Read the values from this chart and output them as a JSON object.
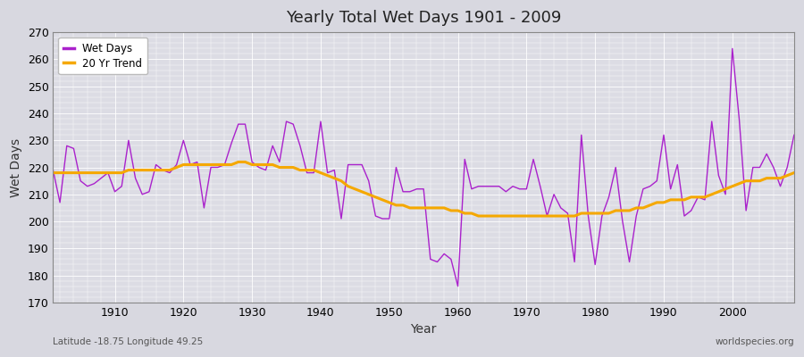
{
  "title": "Yearly Total Wet Days 1901 - 2009",
  "xlabel": "Year",
  "ylabel": "Wet Days",
  "xlim": [
    1901,
    2009
  ],
  "ylim": [
    170,
    270
  ],
  "yticks": [
    170,
    180,
    190,
    200,
    210,
    220,
    230,
    240,
    250,
    260,
    270
  ],
  "background_color": "#d8d8e0",
  "plot_bg_color": "#dcdce4",
  "line_color": "#aa22cc",
  "trend_color": "#f5a800",
  "grid_color": "#ffffff",
  "subtitle_left": "Latitude -18.75 Longitude 49.25",
  "subtitle_right": "worldspecies.org",
  "legend_items": [
    "Wet Days",
    "20 Yr Trend"
  ],
  "years": [
    1901,
    1902,
    1903,
    1904,
    1905,
    1906,
    1907,
    1908,
    1909,
    1910,
    1911,
    1912,
    1913,
    1914,
    1915,
    1916,
    1917,
    1918,
    1919,
    1920,
    1921,
    1922,
    1923,
    1924,
    1925,
    1926,
    1927,
    1928,
    1929,
    1930,
    1931,
    1932,
    1933,
    1934,
    1935,
    1936,
    1937,
    1938,
    1939,
    1940,
    1941,
    1942,
    1943,
    1944,
    1945,
    1946,
    1947,
    1948,
    1949,
    1950,
    1951,
    1952,
    1953,
    1954,
    1955,
    1956,
    1957,
    1958,
    1959,
    1960,
    1961,
    1962,
    1963,
    1964,
    1965,
    1966,
    1967,
    1968,
    1969,
    1970,
    1971,
    1972,
    1973,
    1974,
    1975,
    1976,
    1977,
    1978,
    1979,
    1980,
    1981,
    1982,
    1983,
    1984,
    1985,
    1986,
    1987,
    1988,
    1989,
    1990,
    1991,
    1992,
    1993,
    1994,
    1995,
    1996,
    1997,
    1998,
    1999,
    2000,
    2001,
    2002,
    2003,
    2004,
    2005,
    2006,
    2007,
    2008,
    2009
  ],
  "wet_days": [
    219,
    207,
    228,
    227,
    215,
    213,
    214,
    216,
    218,
    211,
    213,
    230,
    216,
    210,
    211,
    221,
    219,
    218,
    221,
    230,
    221,
    222,
    205,
    220,
    220,
    221,
    229,
    236,
    236,
    222,
    220,
    219,
    228,
    222,
    237,
    236,
    228,
    218,
    218,
    237,
    218,
    219,
    201,
    221,
    221,
    221,
    215,
    202,
    201,
    201,
    220,
    211,
    211,
    212,
    212,
    186,
    185,
    188,
    186,
    176,
    223,
    212,
    213,
    213,
    213,
    213,
    211,
    213,
    212,
    212,
    223,
    213,
    202,
    210,
    205,
    203,
    185,
    232,
    202,
    184,
    202,
    209,
    220,
    200,
    185,
    202,
    212,
    213,
    215,
    232,
    212,
    221,
    202,
    204,
    209,
    208,
    237,
    217,
    210,
    264,
    238,
    204,
    220,
    220,
    225,
    220,
    213,
    220,
    232
  ],
  "trend_years": [
    1901,
    1902,
    1903,
    1904,
    1905,
    1906,
    1907,
    1908,
    1909,
    1910,
    1911,
    1912,
    1913,
    1914,
    1915,
    1916,
    1917,
    1918,
    1919,
    1920,
    1921,
    1922,
    1923,
    1924,
    1925,
    1926,
    1927,
    1928,
    1929,
    1930,
    1931,
    1932,
    1933,
    1934,
    1935,
    1936,
    1937,
    1938,
    1939,
    1940,
    1941,
    1942,
    1943,
    1944,
    1945,
    1946,
    1947,
    1948,
    1949,
    1950,
    1951,
    1952,
    1953,
    1954,
    1955,
    1956,
    1957,
    1958,
    1959,
    1960,
    1961,
    1962,
    1963,
    1964,
    1965,
    1966,
    1967,
    1968,
    1969,
    1970,
    1971,
    1972,
    1973,
    1974,
    1975,
    1976,
    1977,
    1978,
    1979,
    1980,
    1981,
    1982,
    1983,
    1984,
    1985,
    1986,
    1987,
    1988,
    1989,
    1990,
    1991,
    1992,
    1993,
    1994,
    1995,
    1996,
    1997,
    1998,
    1999,
    2000,
    2001,
    2002,
    2003,
    2004,
    2005,
    2006,
    2007,
    2008,
    2009
  ],
  "trend_values": [
    218,
    218,
    218,
    218,
    218,
    218,
    218,
    218,
    218,
    218,
    218,
    219,
    219,
    219,
    219,
    219,
    219,
    219,
    220,
    221,
    221,
    221,
    221,
    221,
    221,
    221,
    221,
    222,
    222,
    221,
    221,
    221,
    221,
    220,
    220,
    220,
    219,
    219,
    219,
    218,
    217,
    216,
    215,
    213,
    212,
    211,
    210,
    209,
    208,
    207,
    206,
    206,
    205,
    205,
    205,
    205,
    205,
    205,
    204,
    204,
    203,
    203,
    202,
    202,
    202,
    202,
    202,
    202,
    202,
    202,
    202,
    202,
    202,
    202,
    202,
    202,
    202,
    203,
    203,
    203,
    203,
    203,
    204,
    204,
    204,
    205,
    205,
    206,
    207,
    207,
    208,
    208,
    208,
    209,
    209,
    209,
    210,
    211,
    212,
    213,
    214,
    215,
    215,
    215,
    216,
    216,
    216,
    217,
    218
  ]
}
